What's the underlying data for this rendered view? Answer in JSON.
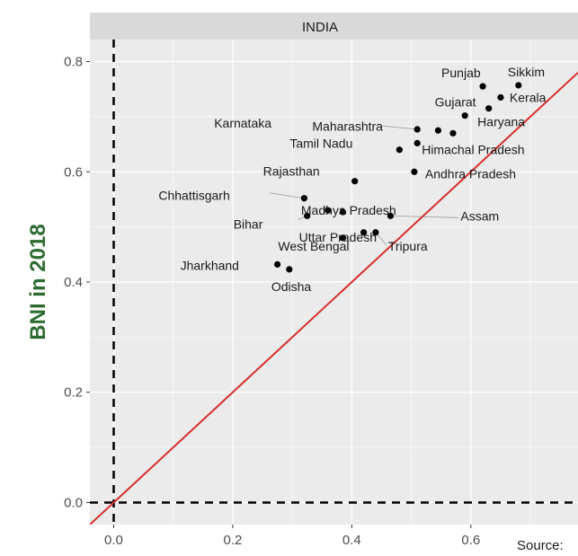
{
  "chart_data": {
    "type": "scatter",
    "panel_title": "INDIA",
    "ylabel": "BNI in 2018",
    "xlabel": "",
    "xlim": [
      -0.04,
      0.78
    ],
    "ylim": [
      -0.04,
      0.84
    ],
    "xticks": [
      0.0,
      0.2,
      0.4,
      0.6
    ],
    "xtick_labels": [
      "0.0",
      "0.2",
      "0.4",
      "0.6"
    ],
    "yticks": [
      0.0,
      0.2,
      0.4,
      0.6,
      0.8
    ],
    "ytick_labels": [
      "0.0",
      "0.2",
      "0.4",
      "0.6",
      "0.8"
    ],
    "reference_line": "y = x",
    "dashed_lines": [
      "x = 0",
      "y = 0"
    ],
    "source_text": "Source:",
    "points": [
      {
        "name": "Punjab",
        "x": 0.62,
        "y": 0.755
      },
      {
        "name": "Sikkim",
        "x": 0.68,
        "y": 0.757
      },
      {
        "name": "Kerala",
        "x": 0.65,
        "y": 0.735
      },
      {
        "name": "Gujarat",
        "x": 0.63,
        "y": 0.715
      },
      {
        "name": "Haryana",
        "x": 0.59,
        "y": 0.702
      },
      {
        "name": "Karnataka",
        "x": 0.51,
        "y": 0.677
      },
      {
        "name": "Maharashtra",
        "x": 0.545,
        "y": 0.675
      },
      {
        "name": "",
        "x": 0.57,
        "y": 0.67
      },
      {
        "name": "Himachal Pradesh",
        "x": 0.51,
        "y": 0.652
      },
      {
        "name": "Tamil Nadu",
        "x": 0.48,
        "y": 0.64
      },
      {
        "name": "Andhra Pradesh",
        "x": 0.505,
        "y": 0.6
      },
      {
        "name": "Rajasthan",
        "x": 0.405,
        "y": 0.583
      },
      {
        "name": "Chhattisgarh",
        "x": 0.32,
        "y": 0.552
      },
      {
        "name": "Madhya Pradesh",
        "x": 0.36,
        "y": 0.53
      },
      {
        "name": "",
        "x": 0.385,
        "y": 0.527
      },
      {
        "name": "Assam",
        "x": 0.465,
        "y": 0.52
      },
      {
        "name": "Bihar",
        "x": 0.325,
        "y": 0.52
      },
      {
        "name": "Uttar Pradesh",
        "x": 0.42,
        "y": 0.49
      },
      {
        "name": "Tripura",
        "x": 0.44,
        "y": 0.49
      },
      {
        "name": "West Bengal",
        "x": 0.385,
        "y": 0.48
      },
      {
        "name": "Jharkhand",
        "x": 0.275,
        "y": 0.432
      },
      {
        "name": "Odisha",
        "x": 0.295,
        "y": 0.423
      }
    ]
  },
  "colors": {
    "panel_bg": "#ebebeb",
    "strip_bg": "#d9d9d9",
    "grid": "#ffffff",
    "point": "#000000",
    "diagonal": "#d62e2e",
    "dashed": "#000000",
    "label_leader": "#9a9a9a"
  }
}
